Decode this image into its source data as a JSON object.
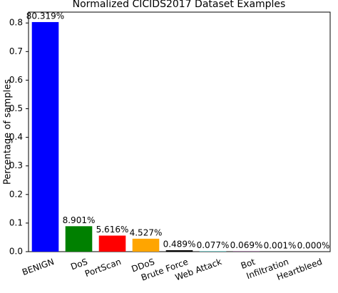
{
  "chart_data": {
    "type": "bar",
    "title": "Normalized CICIDS2017 Dataset Examples",
    "y_label": "Percentage of samples",
    "categories": [
      "BENIGN",
      "DoS",
      "PortScan",
      "DDoS",
      "Brute Force",
      "Web Attack",
      "Bot",
      "Infiltration",
      "Heartbleed"
    ],
    "values": [
      0.80319,
      0.08901,
      0.05616,
      0.04527,
      0.00489,
      0.00077,
      0.00069,
      1e-05,
      0.0
    ],
    "value_labels": [
      "80.319%",
      "8.901%",
      "5.616%",
      "4.527%",
      "0.489%",
      "0.077%",
      "0.069%",
      "0.001%",
      "0.000%"
    ],
    "colors": [
      "#0000ff",
      "#008000",
      "#ff0000",
      "#ffa500",
      "#000000",
      "#00ffff",
      "#800080",
      "#ff00ff",
      "#ffff00"
    ],
    "ylim": [
      0,
      0.838
    ],
    "yticks": [
      {
        "value": 0,
        "label": "0.0"
      },
      0.1,
      0.2,
      0.3,
      0.4,
      0.5,
      0.6,
      0.7,
      0.8
    ]
  }
}
